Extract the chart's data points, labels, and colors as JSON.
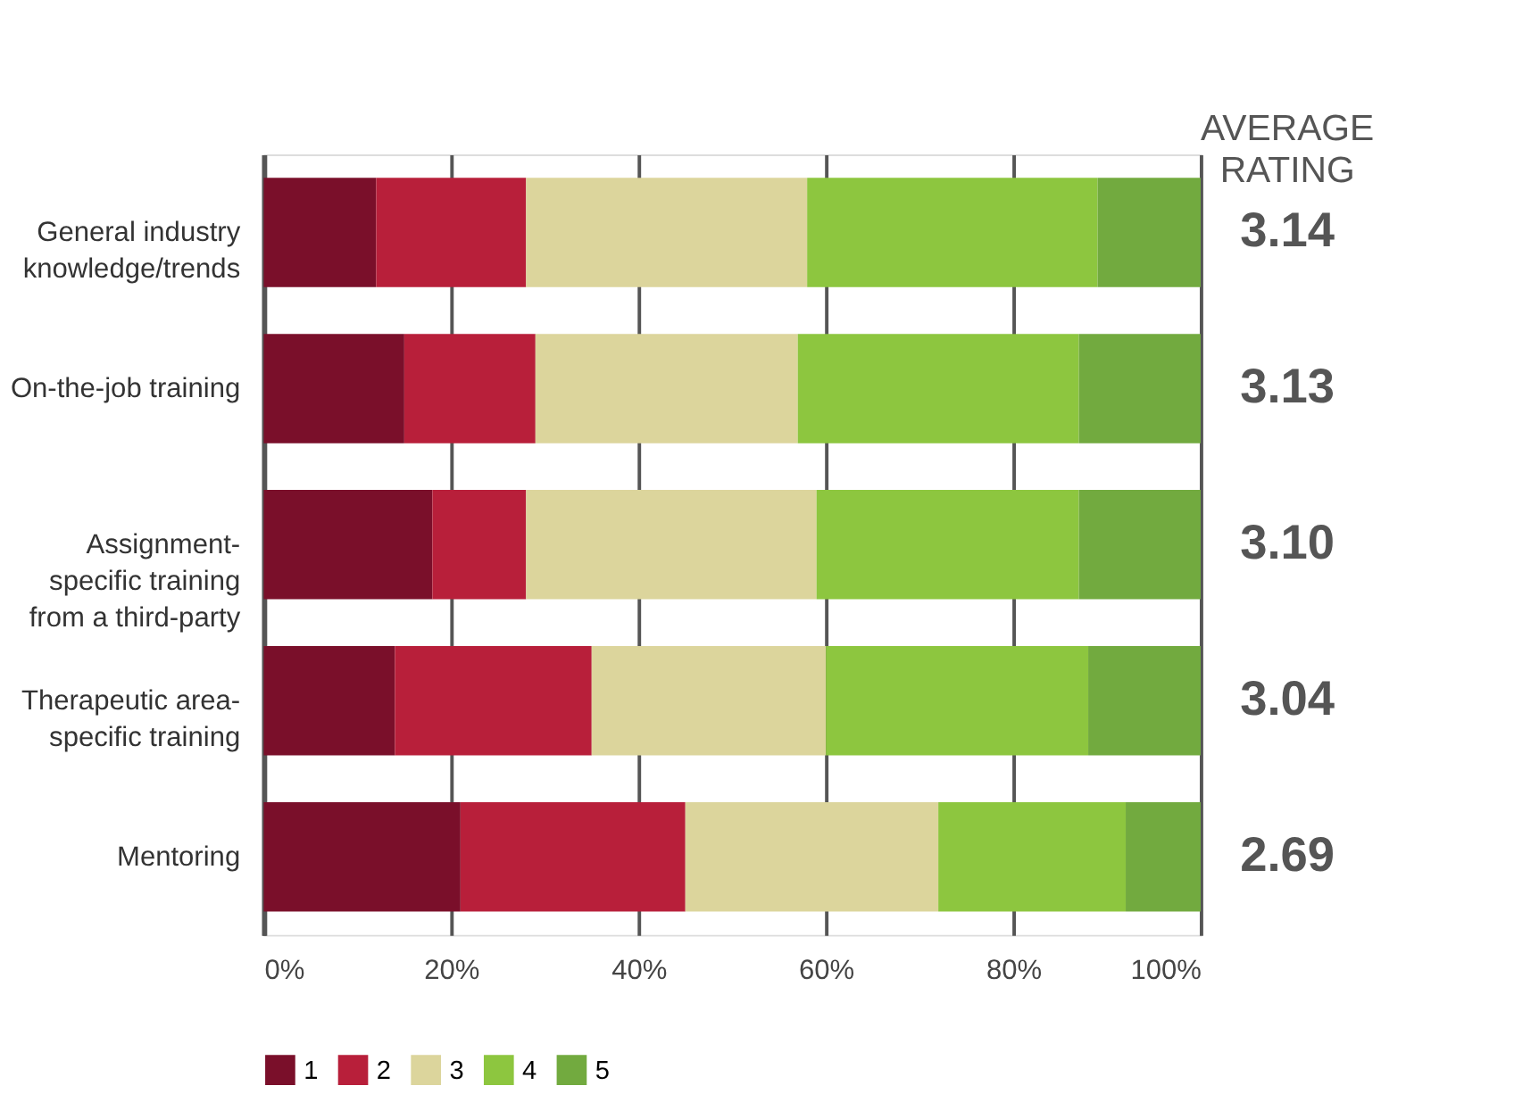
{
  "chart_data": {
    "type": "bar",
    "orientation": "horizontal",
    "stacked": true,
    "categories": [
      "General industry knowledge/trends",
      "On-the-job training",
      "Assignment-specific training from a third-party",
      "Therapeutic area-specific training",
      "Mentoring"
    ],
    "series": [
      {
        "name": "1",
        "color": "#7a0f2a",
        "values": [
          12,
          15,
          18,
          14,
          21
        ]
      },
      {
        "name": "2",
        "color": "#b81f3a",
        "values": [
          16,
          14,
          10,
          21,
          24
        ]
      },
      {
        "name": "3",
        "color": "#dcd59c",
        "values": [
          30,
          28,
          31,
          25,
          27
        ]
      },
      {
        "name": "4",
        "color": "#8dc63f",
        "values": [
          31,
          30,
          28,
          28,
          20
        ]
      },
      {
        "name": "5",
        "color": "#72aa3f",
        "values": [
          11,
          13,
          13,
          12,
          8
        ]
      }
    ],
    "xlim": [
      0,
      100
    ],
    "xticks": [
      {
        "value": 0,
        "label": "0%"
      },
      {
        "value": 20,
        "label": "20%"
      },
      {
        "value": 40,
        "label": "40%"
      },
      {
        "value": 60,
        "label": "60%"
      },
      {
        "value": 80,
        "label": "80%"
      },
      {
        "value": 100,
        "label": "100%"
      }
    ],
    "grid": "x",
    "legend": "bottom",
    "annotations": [
      "AVERAGE RATING",
      "3.14",
      "3.13",
      "3.10",
      "3.04",
      "2.69"
    ]
  }
}
